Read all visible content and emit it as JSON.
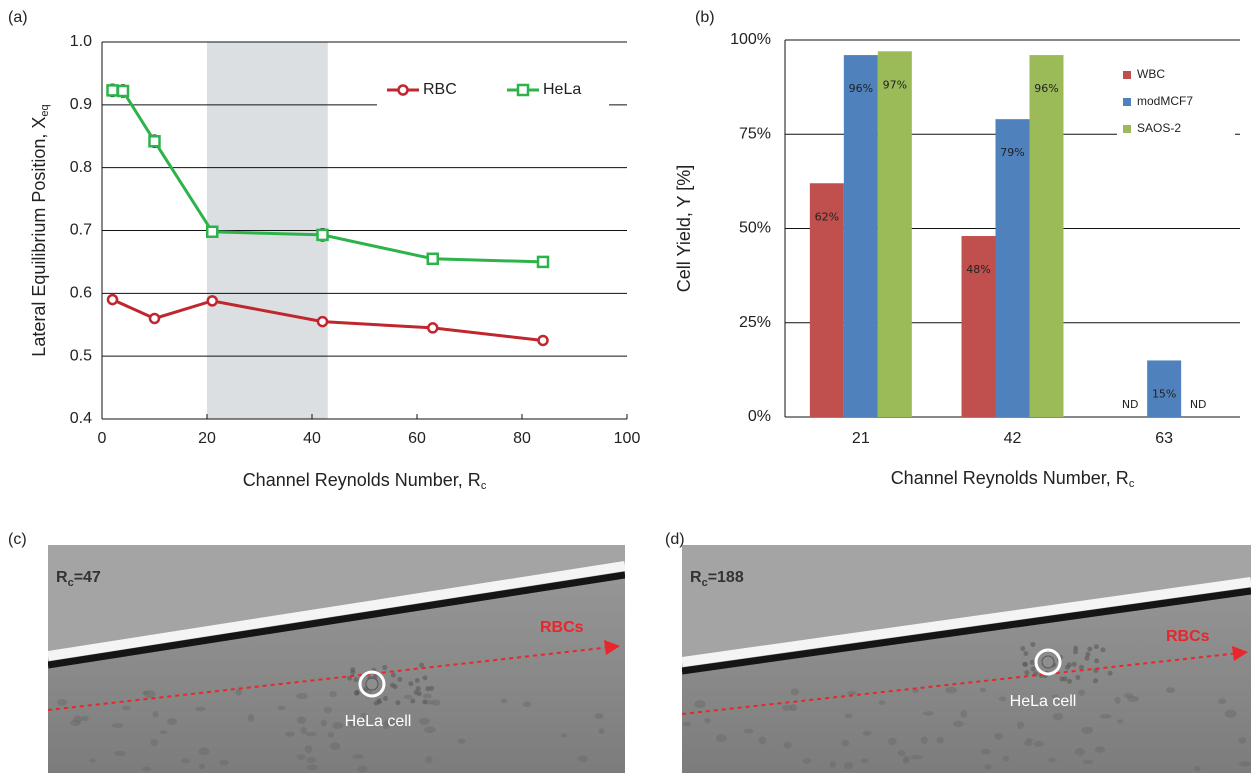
{
  "chart_data": [
    {
      "type": "line",
      "panel_label": "(a)",
      "xlabel": {
        "text": "Channel Reynolds Number, R",
        "sub": "c"
      },
      "ylabel": {
        "text": "Lateral Equilibrium Position, X",
        "sub": "eq"
      },
      "xlim": [
        0,
        100
      ],
      "xticks": [
        0,
        20,
        40,
        60,
        80,
        100
      ],
      "ylim": [
        0.4,
        1
      ],
      "yticks": [
        0.4,
        0.5,
        0.6,
        0.7,
        0.8,
        0.9,
        {
          "value": 1,
          "label": "1.0"
        }
      ],
      "grid": true,
      "shade": [
        20,
        43
      ],
      "legend": "top-right",
      "series": [
        {
          "name": "RBC",
          "color": "#c0262d",
          "marker": "circle",
          "x": [
            2,
            10,
            21,
            42,
            63,
            84
          ],
          "values": [
            0.59,
            0.56,
            0.588,
            0.555,
            0.545,
            0.525
          ],
          "errors": [
            0.005,
            0.005,
            0.005,
            0.005,
            0.005,
            0.005
          ]
        },
        {
          "name": "HeLa",
          "color": "#2db34a",
          "marker": "square",
          "x": [
            2,
            4,
            10,
            21,
            42,
            63,
            84
          ],
          "values": [
            0.923,
            0.922,
            0.842,
            0.698,
            0.693,
            0.655,
            0.65
          ],
          "errors": [
            0.01,
            0.01,
            0.01,
            0.008,
            0.01,
            0.008,
            0.007
          ]
        }
      ]
    },
    {
      "type": "bar",
      "panel_label": "(b)",
      "xlabel": {
        "text": "Channel Reynolds Number, R",
        "sub": "c"
      },
      "ylabel": {
        "text": "Cell Yield, Y [%]"
      },
      "categories": [
        "21",
        "42",
        "63"
      ],
      "ylim": [
        0,
        100
      ],
      "yticks": [
        {
          "value": 0,
          "label": "0%"
        },
        {
          "value": 25,
          "label": "25%"
        },
        {
          "value": 50,
          "label": "50%"
        },
        {
          "value": 75,
          "label": "75%"
        },
        {
          "value": 100,
          "label": "100%"
        }
      ],
      "grid": true,
      "legend": "top-right",
      "series": [
        {
          "name": "WBC",
          "color": "#c0504d",
          "values": [
            62,
            48,
            null
          ],
          "value_labels": [
            "62%",
            "48%",
            "ND"
          ]
        },
        {
          "name": "modMCF7",
          "color": "#4f81bd",
          "values": [
            96,
            79,
            15
          ],
          "value_labels": [
            "96%",
            "79%",
            "15%"
          ]
        },
        {
          "name": "SAOS-2",
          "color": "#9bbb59",
          "values": [
            97,
            96,
            null
          ],
          "value_labels": [
            "97%",
            "96%",
            "ND"
          ]
        }
      ]
    }
  ],
  "panels": [
    {
      "label": "(c)",
      "rc": {
        "text": "R",
        "sub": "c",
        "rest": "=47"
      },
      "stream": "RBCs",
      "cell": "HeLa cell"
    },
    {
      "label": "(d)",
      "rc": {
        "text": "R",
        "sub": "c",
        "rest": "=188"
      },
      "stream": "RBCs",
      "cell": "HeLa cell"
    }
  ]
}
